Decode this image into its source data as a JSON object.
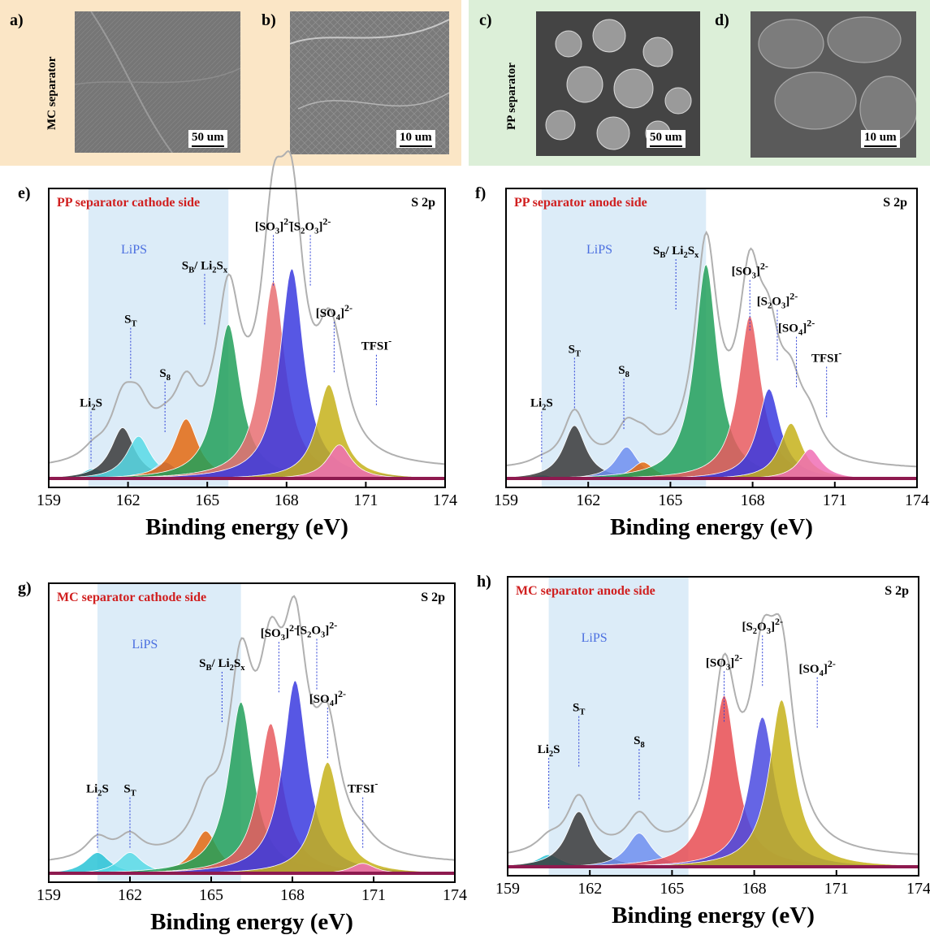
{
  "top_panels": {
    "left_group_label": "MC separator",
    "right_group_label": "PP separator",
    "left_bg": "#fbe6c6",
    "right_bg": "#dcefd8",
    "panels": [
      {
        "letter": "a)",
        "scale": "50 um"
      },
      {
        "letter": "b)",
        "scale": "10 um"
      },
      {
        "letter": "c)",
        "scale": "50 um"
      },
      {
        "letter": "d)",
        "scale": "10 um"
      }
    ]
  },
  "chart_data": [
    {
      "type": "area",
      "panel": "e)",
      "title": "PP separator cathode side",
      "corner_label": "S 2p",
      "xlabel": "Binding energy (eV)",
      "xlim": [
        159,
        174
      ],
      "xticks": [
        "159",
        "162",
        "165",
        "168",
        "171",
        "174"
      ],
      "shade_label": "LiPS",
      "shade_range": [
        160.5,
        165.8
      ],
      "peaks": [
        {
          "name": "Li2S",
          "center": 160.7,
          "height": 0.05,
          "color": "#29c3d6"
        },
        {
          "name": "ST",
          "center": 161.8,
          "height": 0.24,
          "color": "#3a3a3a"
        },
        {
          "name": "ST",
          "center": 162.4,
          "height": 0.2,
          "color": "#58dbe6"
        },
        {
          "name": "S8",
          "center": 163.4,
          "height": 0.08,
          "color": "#4e78e6"
        },
        {
          "name": "SB/Li2Sx",
          "center": 164.2,
          "height": 0.28,
          "color": "#e46a10"
        },
        {
          "name": "SB/Li2Sx",
          "center": 165.8,
          "height": 0.72,
          "color": "#22a05a"
        },
        {
          "name": "[SO3]2-",
          "center": 167.5,
          "height": 0.92,
          "color": "#e86e72"
        },
        {
          "name": "[S2O3]2-",
          "center": 168.2,
          "height": 0.98,
          "color": "#3a3adf"
        },
        {
          "name": "[SO4]2-",
          "center": 169.6,
          "height": 0.44,
          "color": "#c5b21a"
        },
        {
          "name": "TFSI-",
          "center": 170.0,
          "height": 0.16,
          "color": "#f06fb5"
        }
      ],
      "annotations": [
        "Li2S",
        "ST",
        "S8",
        "SB/ Li2Sx",
        "[SO3]2-",
        "[S2O3]2-",
        "[SO4]2-",
        "TFSI-"
      ]
    },
    {
      "type": "area",
      "panel": "f)",
      "title": "PP separator anode side",
      "corner_label": "S 2p",
      "xlabel": "Binding energy (eV)",
      "xlim": [
        159,
        174
      ],
      "xticks": [
        "159",
        "162",
        "165",
        "168",
        "171",
        "174"
      ],
      "shade_label": "LiPS",
      "shade_range": [
        160.3,
        166.3
      ],
      "peaks": [
        {
          "name": "Li2S",
          "center": 160.3,
          "height": 0.02,
          "color": "#29c3d6"
        },
        {
          "name": "ST",
          "center": 161.5,
          "height": 0.25,
          "color": "#3a3a3a"
        },
        {
          "name": "S8",
          "center": 163.4,
          "height": 0.15,
          "color": "#6f8ff0"
        },
        {
          "name": "SB/Li2Sx",
          "center": 164.0,
          "height": 0.08,
          "color": "#e46a10"
        },
        {
          "name": "SB/Li2Sx",
          "center": 166.3,
          "height": 1.0,
          "color": "#22a05a"
        },
        {
          "name": "[SO3]2-",
          "center": 167.9,
          "height": 0.76,
          "color": "#e85a5f"
        },
        {
          "name": "[S2O3]2-",
          "center": 168.6,
          "height": 0.42,
          "color": "#3a3adf"
        },
        {
          "name": "[SO4]2-",
          "center": 169.4,
          "height": 0.26,
          "color": "#c5b21a"
        },
        {
          "name": "TFSI-",
          "center": 170.1,
          "height": 0.14,
          "color": "#f06fb5"
        }
      ],
      "annotations": [
        "Li2S",
        "ST",
        "S8",
        "SB/ Li2Sx",
        "[SO3]2-",
        "[S2O3]2-",
        "[SO4]2-",
        "TFSI-"
      ]
    },
    {
      "type": "area",
      "panel": "g)",
      "title": "MC separator cathode side",
      "corner_label": "S 2p",
      "xlabel": "Binding energy (eV)",
      "xlim": [
        159,
        174
      ],
      "xticks": [
        "159",
        "162",
        "165",
        "168",
        "171",
        "174"
      ],
      "shade_label": "LiPS",
      "shade_range": [
        160.8,
        166.1
      ],
      "peaks": [
        {
          "name": "Li2S",
          "center": 160.8,
          "height": 0.1,
          "color": "#29c3d6"
        },
        {
          "name": "ST",
          "center": 162.0,
          "height": 0.1,
          "color": "#58dbe6"
        },
        {
          "name": "SB/Li2Sx",
          "center": 164.8,
          "height": 0.2,
          "color": "#e46a10"
        },
        {
          "name": "SB/Li2Sx",
          "center": 166.1,
          "height": 0.8,
          "color": "#22a05a"
        },
        {
          "name": "[SO3]2-",
          "center": 167.2,
          "height": 0.7,
          "color": "#e85a5f"
        },
        {
          "name": "[S2O3]2-",
          "center": 168.1,
          "height": 0.9,
          "color": "#3a3adf"
        },
        {
          "name": "[SO4]2-",
          "center": 169.3,
          "height": 0.52,
          "color": "#c5b21a"
        },
        {
          "name": "TFSI-",
          "center": 170.6,
          "height": 0.05,
          "color": "#f06fb5"
        }
      ],
      "annotations": [
        "Li2S",
        "ST",
        "SB/ Li2Sx",
        "[SO3]2-",
        "[S2O3]2-",
        "[SO4]2-",
        "TFSI-"
      ]
    },
    {
      "type": "area",
      "panel": "h)",
      "title": "MC separator anode side",
      "corner_label": "S 2p",
      "xlabel": "Binding energy (eV)",
      "xlim": [
        159,
        174
      ],
      "xticks": [
        "159",
        "162",
        "165",
        "168",
        "171",
        "174"
      ],
      "shade_label": "LiPS",
      "shade_range": [
        160.5,
        165.6
      ],
      "peaks": [
        {
          "name": "Li2S",
          "center": 160.5,
          "height": 0.06,
          "color": "#29c3d6"
        },
        {
          "name": "ST",
          "center": 161.6,
          "height": 0.26,
          "color": "#3a3a3a"
        },
        {
          "name": "S8",
          "center": 163.8,
          "height": 0.16,
          "color": "#6f8ff0"
        },
        {
          "name": "[SO3]2-",
          "center": 166.9,
          "height": 0.8,
          "color": "#e84c52"
        },
        {
          "name": "[S2O3]2-",
          "center": 168.3,
          "height": 0.7,
          "color": "#4a4ae0"
        },
        {
          "name": "[SO4]2-",
          "center": 169.0,
          "height": 0.78,
          "color": "#c5b21a"
        }
      ],
      "annotations": [
        "Li2S",
        "ST",
        "S8",
        "[SO3]2-",
        "[S2O3]2-",
        "[SO4]2-"
      ]
    }
  ]
}
